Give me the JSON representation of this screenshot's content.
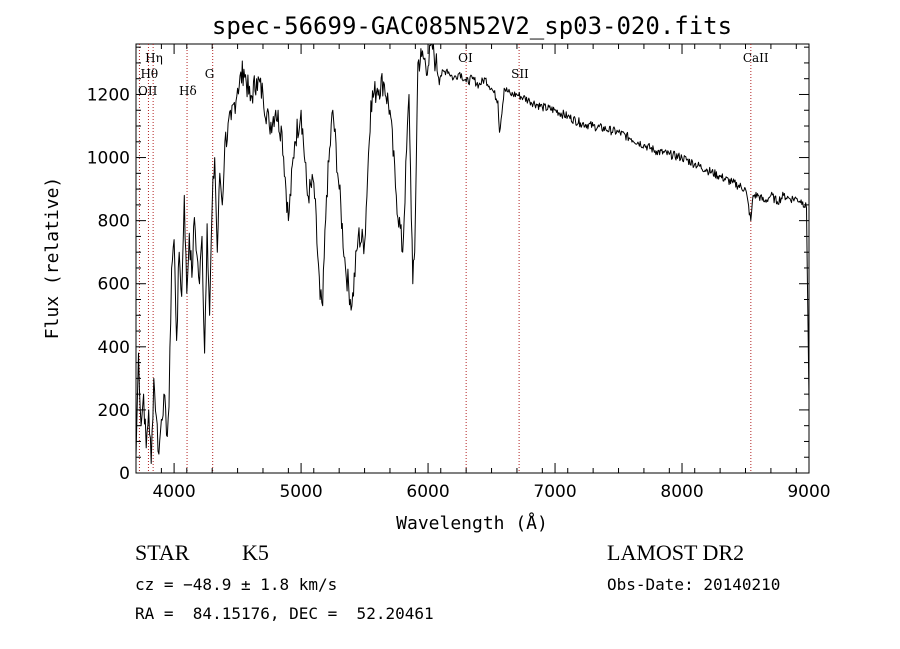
{
  "chart_data": {
    "type": "line",
    "title": "spec-56699-GAC085N52V2_sp03-020.fits",
    "xlabel": "Wavelength (Å)",
    "ylabel": "Flux (relative)",
    "xlim": [
      3700,
      9000
    ],
    "ylim": [
      0,
      1360
    ],
    "xticks": [
      4000,
      5000,
      6000,
      7000,
      8000,
      9000
    ],
    "yticks": [
      0,
      200,
      400,
      600,
      800,
      1000,
      1200
    ],
    "grid": false,
    "series": [
      {
        "x": [
          3700,
          3720,
          3740,
          3760,
          3780,
          3800,
          3820,
          3840,
          3860,
          3880,
          3900,
          3920,
          3940,
          3960,
          3980,
          4000,
          4020,
          4040,
          4060,
          4080,
          4100,
          4120,
          4140,
          4160,
          4180,
          4200,
          4220,
          4240,
          4260,
          4280,
          4300,
          4320,
          4340,
          4360,
          4380,
          4400,
          4450,
          4500,
          4550,
          4600,
          4650,
          4700,
          4750,
          4800,
          4850,
          4900,
          4950,
          5000,
          5050,
          5100,
          5150,
          5170,
          5200,
          5250,
          5300,
          5350,
          5400,
          5450,
          5500,
          5550,
          5600,
          5650,
          5700,
          5750,
          5800,
          5850,
          5880,
          5895,
          5920,
          5950,
          6000,
          6030,
          6060,
          6100,
          6150,
          6200,
          6250,
          6300,
          6350,
          6400,
          6450,
          6500,
          6550,
          6563,
          6600,
          6650,
          6700,
          6750,
          6800,
          6900,
          7000,
          7100,
          7200,
          7300,
          7400,
          7500,
          7600,
          7700,
          7800,
          7900,
          8000,
          8100,
          8200,
          8300,
          8400,
          8500,
          8542,
          8560,
          8600,
          8650,
          8700,
          8750,
          8800,
          8850,
          8900,
          8950,
          8980,
          9000
        ],
        "values": [
          50,
          380,
          150,
          250,
          80,
          200,
          30,
          300,
          180,
          60,
          170,
          250,
          120,
          210,
          650,
          740,
          420,
          700,
          560,
          880,
          570,
          760,
          620,
          810,
          690,
          600,
          750,
          380,
          790,
          500,
          850,
          1000,
          700,
          950,
          850,
          1050,
          1120,
          1220,
          1280,
          1180,
          1250,
          1200,
          1100,
          1150,
          1080,
          800,
          1050,
          1150,
          880,
          920,
          550,
          530,
          880,
          1150,
          900,
          650,
          530,
          750,
          730,
          1180,
          1220,
          1240,
          1150,
          880,
          700,
          1200,
          600,
          700,
          1300,
          1320,
          1290,
          1360,
          1300,
          1260,
          1280,
          1250,
          1270,
          1240,
          1250,
          1230,
          1250,
          1220,
          1180,
          1080,
          1220,
          1200,
          1200,
          1190,
          1180,
          1160,
          1150,
          1130,
          1110,
          1100,
          1090,
          1080,
          1060,
          1040,
          1020,
          1010,
          1000,
          980,
          960,
          940,
          920,
          900,
          800,
          880,
          880,
          860,
          880,
          860,
          880,
          870,
          870,
          860,
          840,
          230
        ]
      }
    ],
    "line_markers": [
      {
        "label": "Hη",
        "x": 3835
      },
      {
        "label": "Hθ",
        "x": 3798
      },
      {
        "label": "OII",
        "x": 3727
      },
      {
        "label": "Hδ",
        "x": 4102
      },
      {
        "label": "G",
        "x": 4304
      },
      {
        "label": "OI",
        "x": 6300
      },
      {
        "label": "SII",
        "x": 6717
      },
      {
        "label": "CaII",
        "x": 8542
      }
    ],
    "colors": {
      "line": "#000000",
      "markers": "#b22222",
      "axes": "#000000"
    }
  },
  "footer": {
    "class_label": "STAR",
    "subclass": "K5",
    "survey": "LAMOST DR2",
    "cz": "cz = −48.9 ± 1.8 km/s",
    "obs_date": "Obs-Date: 20140210",
    "radec": "RA =  84.15176, DEC =  52.20461"
  }
}
